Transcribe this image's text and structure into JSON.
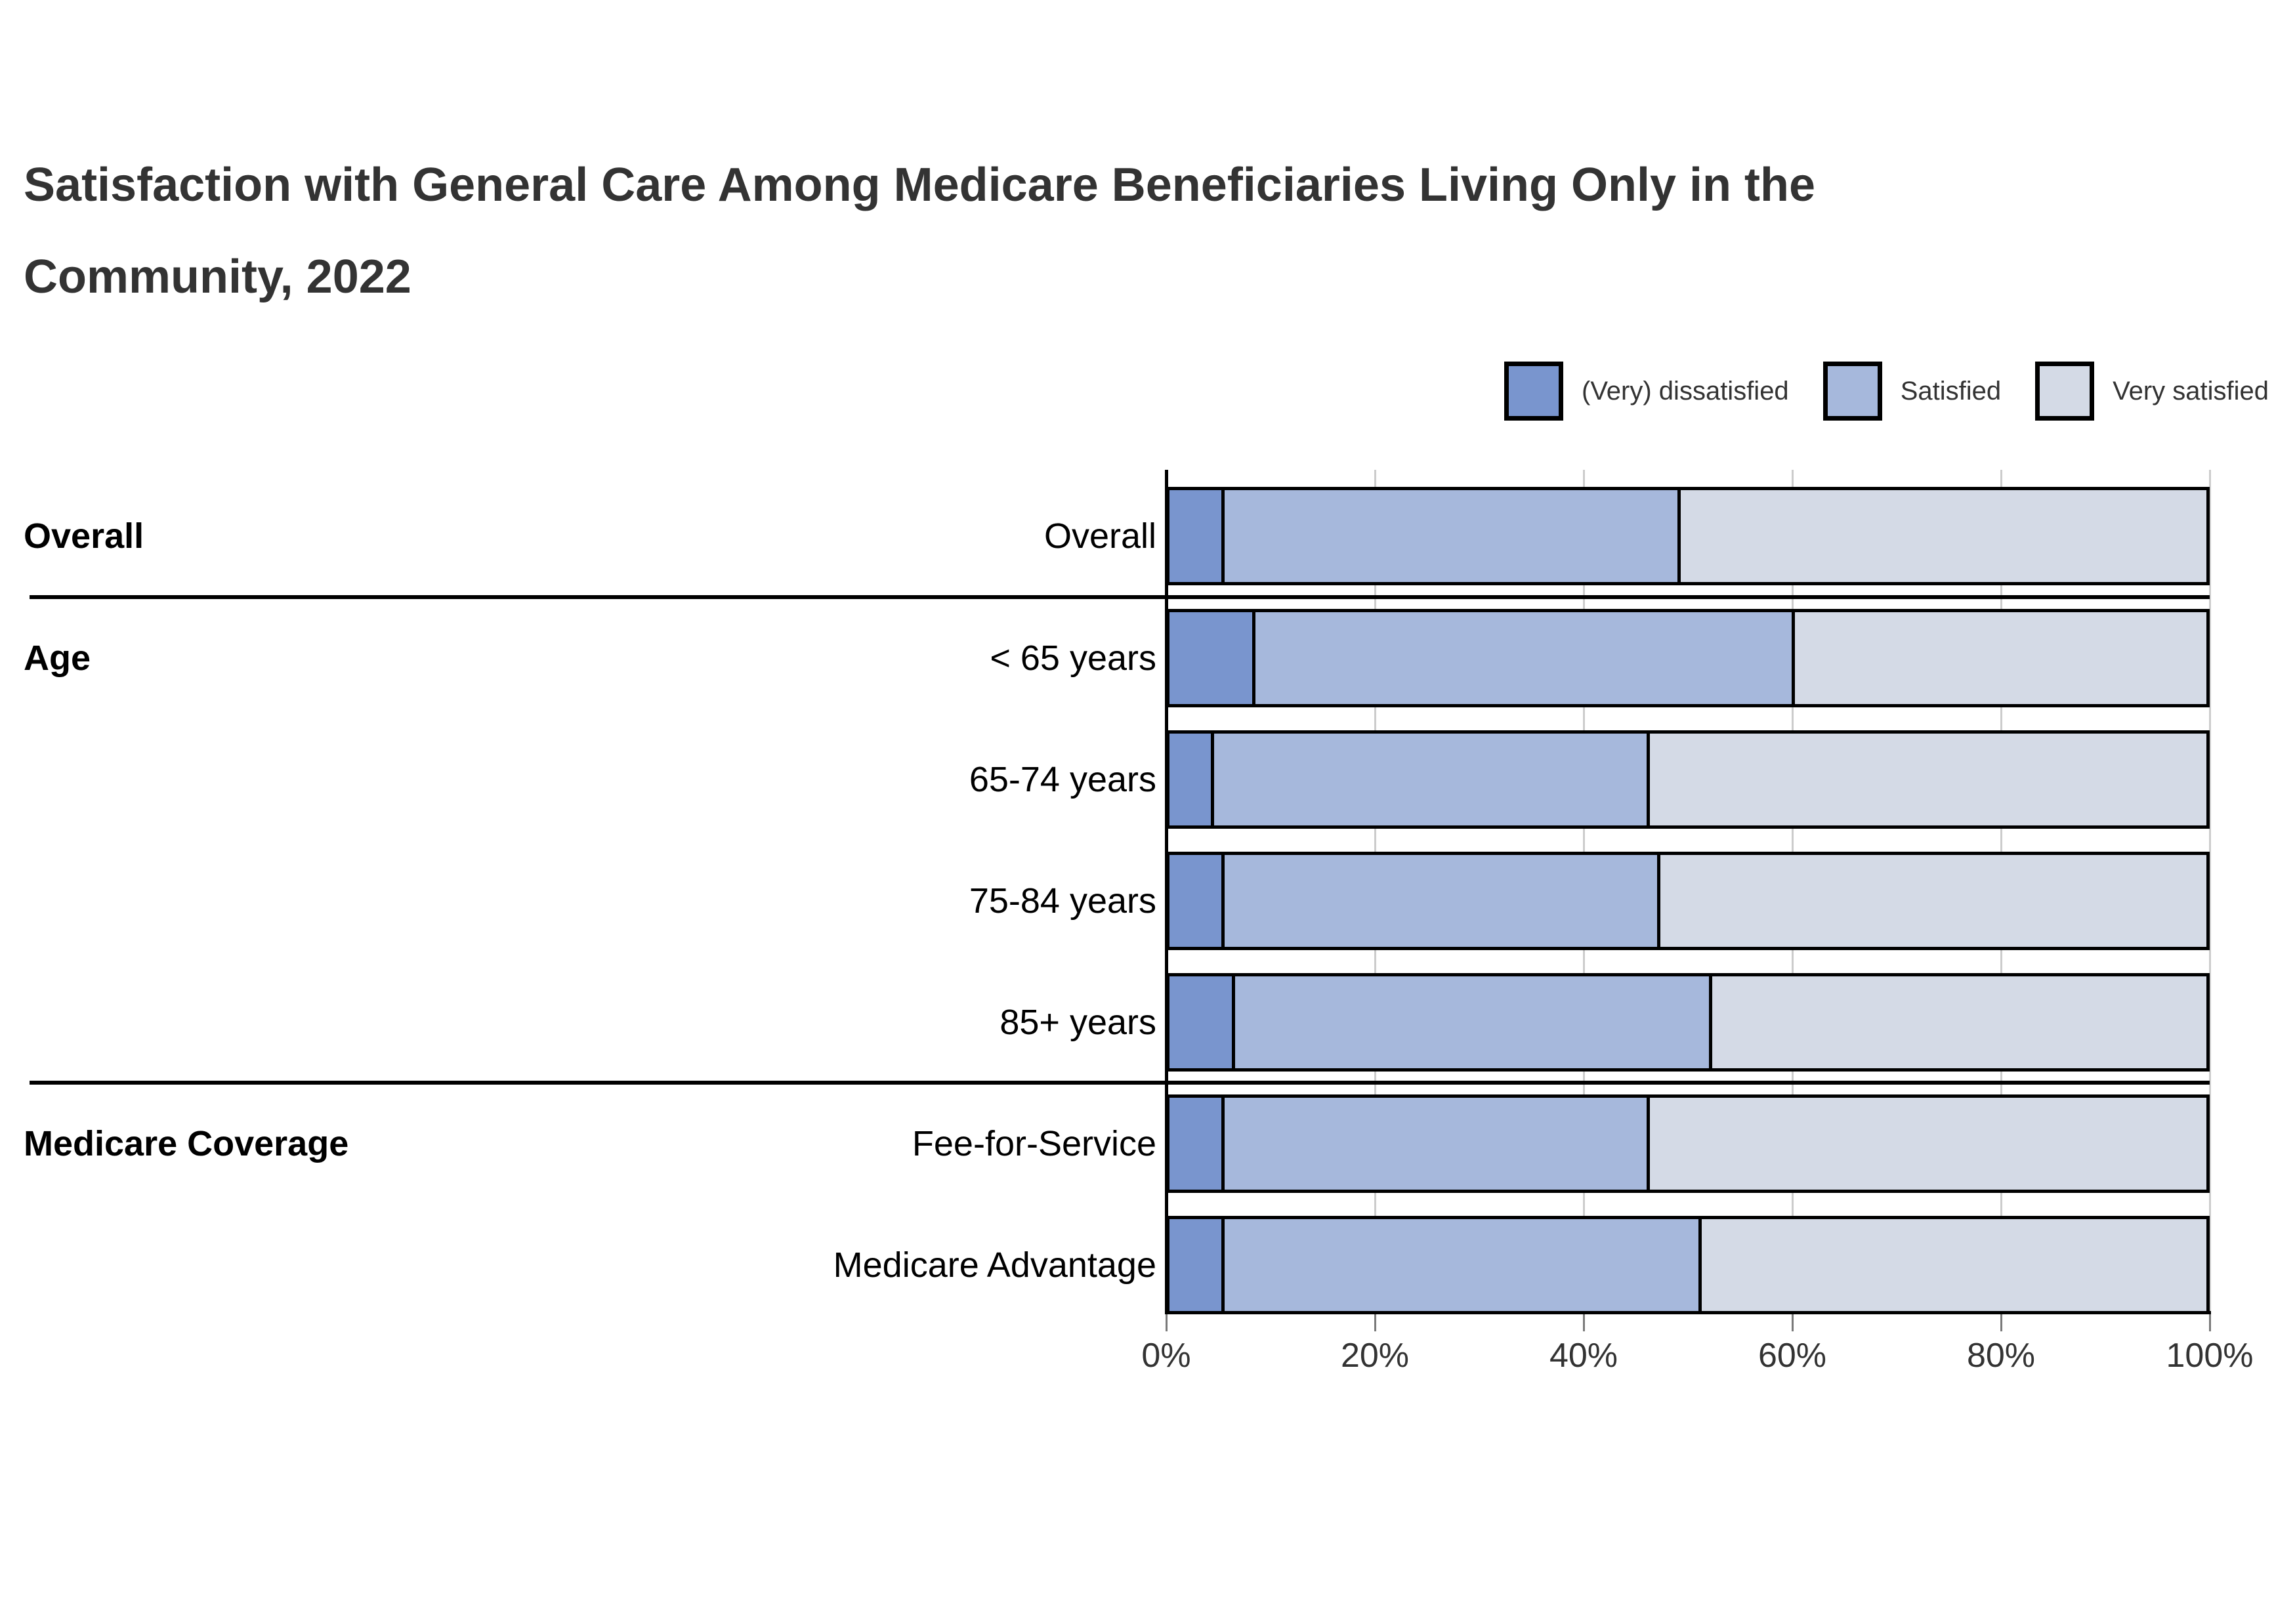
{
  "title": "Satisfaction with General Care Among Medicare Beneficiaries Living Only in the Community, 2022",
  "legend": [
    {
      "label": "(Very) dissatisfied",
      "color": "#7995CE"
    },
    {
      "label": "Satisfied",
      "color": "#A6B8DC"
    },
    {
      "label": "Very satisfied",
      "color": "#D4DAE6"
    }
  ],
  "chart_data": {
    "type": "bar",
    "orientation": "horizontal",
    "stacked": true,
    "title": "Satisfaction with General Care Among Medicare Beneficiaries Living Only in the Community, 2022",
    "categories": [
      "Overall",
      "< 65 years",
      "65-74 years",
      "75-84 years",
      "85+ years",
      "Fee-for-Service",
      "Medicare Advantage"
    ],
    "groups": [
      {
        "label": "Overall",
        "rows": [
          "Overall"
        ]
      },
      {
        "label": "Age",
        "rows": [
          "< 65 years",
          "65-74 years",
          "75-84 years",
          "85+ years"
        ]
      },
      {
        "label": "Medicare Coverage",
        "rows": [
          "Fee-for-Service",
          "Medicare Advantage"
        ]
      }
    ],
    "series": [
      {
        "name": "(Very) dissatisfied",
        "color": "#7995CE",
        "values": [
          5,
          8,
          4,
          5,
          6,
          5,
          5
        ]
      },
      {
        "name": "Satisfied",
        "color": "#A6B8DC",
        "values": [
          44,
          52,
          42,
          42,
          46,
          41,
          46
        ]
      },
      {
        "name": "Very satisfied",
        "color": "#D4DAE6",
        "values": [
          51,
          40,
          54,
          53,
          48,
          54,
          49
        ]
      }
    ],
    "x_axis": {
      "min": 0,
      "max": 100,
      "tick_values": [
        0,
        20,
        40,
        60,
        80,
        100
      ],
      "tick_labels": [
        "0%",
        "20%",
        "40%",
        "60%",
        "80%",
        "100%"
      ]
    },
    "grid": true,
    "legend_position": "top-right",
    "colors": {
      "grid": "#cccccc",
      "axis": "#000000",
      "text": "#333333"
    }
  }
}
